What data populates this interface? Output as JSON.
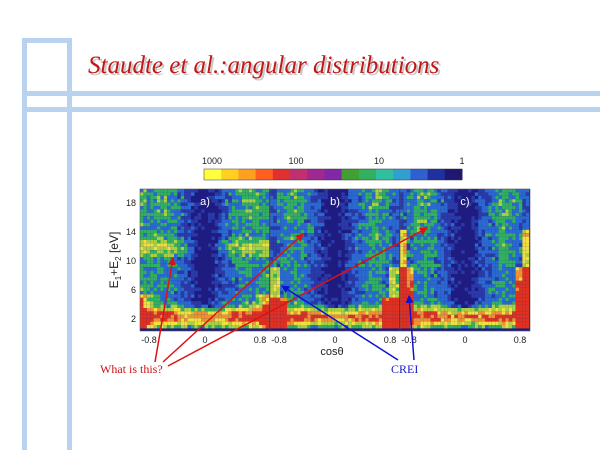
{
  "slide": {
    "title": "Staudte et al.:angular distributions"
  },
  "figure": {
    "colorbar_ticks": [
      "1000",
      "100",
      "10",
      "1"
    ],
    "colorbar_colors": [
      "#ffff40",
      "#ffd020",
      "#ffa020",
      "#ff6020",
      "#e03030",
      "#c03070",
      "#a02890",
      "#8028a8",
      "#40a030",
      "#30b060",
      "#30c0a0",
      "#30a0d0",
      "#3060d0",
      "#2030a0",
      "#201870"
    ],
    "panels": [
      {
        "label": "a)",
        "xticks": [
          "-0.8",
          "0",
          "0.8"
        ]
      },
      {
        "label": "b)",
        "xticks": [
          "-0.8",
          "0",
          "0.8"
        ]
      },
      {
        "label": "c)",
        "xticks": [
          "-0.8",
          "0",
          "0.8"
        ]
      }
    ],
    "yticks": [
      "2",
      "6",
      "10",
      "14",
      "18"
    ],
    "ylabel": "E1+E2 [eV]",
    "ylabel_parts": {
      "e1": "E",
      "sub1": "1",
      "plus": "+E",
      "sub2": "2",
      "unit": "[eV]"
    },
    "xlabel": "cosθ"
  },
  "annotations": {
    "what_is_this": "What is this?",
    "crei": "CREI"
  }
}
